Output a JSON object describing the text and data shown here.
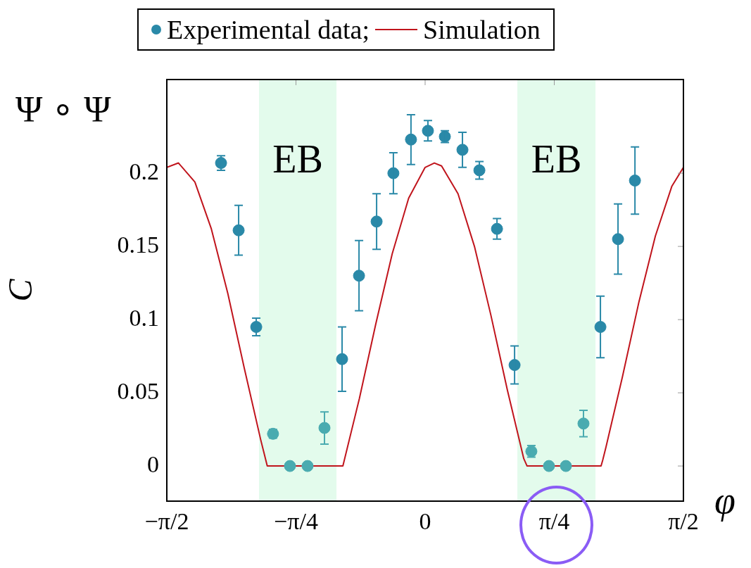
{
  "chart_data": {
    "type": "scatter",
    "xlabel": "φ",
    "ylabel": "C",
    "legend": "top",
    "marker": "circle",
    "xlim": [
      -1.5708,
      1.5708
    ],
    "xticks": [
      {
        "value": -1.5708,
        "label": "−π/2"
      },
      {
        "value": -0.7854,
        "label": "−π/4"
      },
      0,
      {
        "value": 0.7854,
        "label": "π/4"
      },
      {
        "value": 1.5708,
        "label": "π/2"
      }
    ],
    "ylim": [
      -0.024,
      0.264
    ],
    "yticks": [
      0,
      0.05,
      0.1,
      0.15,
      0.2
    ],
    "grid": false,
    "annotations": [
      "Ψ ∘ Ψ"
    ],
    "bands": [
      {
        "axis": "x",
        "from": -1.01,
        "to": -0.539,
        "label": "EB",
        "color": "#e3fbec"
      },
      {
        "axis": "x",
        "from": 0.561,
        "to": 1.036,
        "label": "EB",
        "color": "#e3fbec"
      }
    ],
    "series": [
      {
        "name": "Experimental data;",
        "color": "#2a89a8",
        "x": [
          -1.241,
          -1.134,
          -1.027,
          -0.925,
          -0.822,
          -0.715,
          -0.612,
          -0.505,
          -0.402,
          -0.295,
          -0.193,
          -0.086,
          0.017,
          0.12,
          0.227,
          0.33,
          0.437,
          0.544,
          0.646,
          0.753,
          0.856,
          0.963,
          1.066,
          1.173,
          1.276
        ],
        "values": [
          0.207,
          0.161,
          0.095,
          0.022,
          0,
          0,
          0.026,
          0.073,
          0.13,
          0.167,
          0.2,
          0.223,
          0.229,
          0.225,
          0.216,
          0.202,
          0.162,
          0.069,
          0.01,
          0,
          0,
          0.029,
          0.095,
          0.155,
          0.195
        ],
        "errors": [
          0.005,
          0.017,
          0.006,
          0.003,
          null,
          null,
          0.011,
          0.022,
          0.024,
          0.019,
          0.014,
          0.017,
          0.007,
          0.004,
          0.012,
          0.006,
          0.007,
          0.013,
          0.004,
          null,
          null,
          0.009,
          0.021,
          0.024,
          0.023
        ],
        "colors": [
          "#2a89a8",
          "#2a89a8",
          "#2a89a8",
          "#4aabb0",
          "#4aabb0",
          "#4aabb0",
          "#4aabb0",
          "#2a89a8",
          "#2a89a8",
          "#2a89a8",
          "#2a89a8",
          "#2a89a8",
          "#2a89a8",
          "#2a89a8",
          "#2a89a8",
          "#2a89a8",
          "#2a89a8",
          "#2a89a8",
          "#4aabb0",
          "#4aabb0",
          "#4aabb0",
          "#4aabb0",
          "#2a89a8",
          "#2a89a8",
          "#2a89a8"
        ]
      },
      {
        "name": "Simulation",
        "type": "line",
        "color": "#c0141c",
        "marker": "none",
        "x": [
          -1.5708,
          -1.5,
          -1.4,
          -1.3,
          -1.2,
          -1.1,
          -1.0,
          -0.98,
          -0.96,
          -0.5,
          -0.4,
          -0.3,
          -0.2,
          -0.1,
          0,
          0.056,
          0.1,
          0.2,
          0.3,
          0.4,
          0.5,
          0.6,
          0.62,
          1.07,
          1.08,
          1.1,
          1.2,
          1.3,
          1.4,
          1.5,
          1.5708
        ],
        "values": [
          0.204,
          0.207,
          0.194,
          0.162,
          0.118,
          0.067,
          0.018,
          0.009,
          0,
          0,
          0.046,
          0.097,
          0.145,
          0.183,
          0.204,
          0.207,
          0.205,
          0.186,
          0.15,
          0.103,
          0.052,
          0.005,
          0,
          0,
          0.004,
          0.013,
          0.061,
          0.112,
          0.157,
          0.191,
          0.204
        ]
      }
    ]
  }
}
